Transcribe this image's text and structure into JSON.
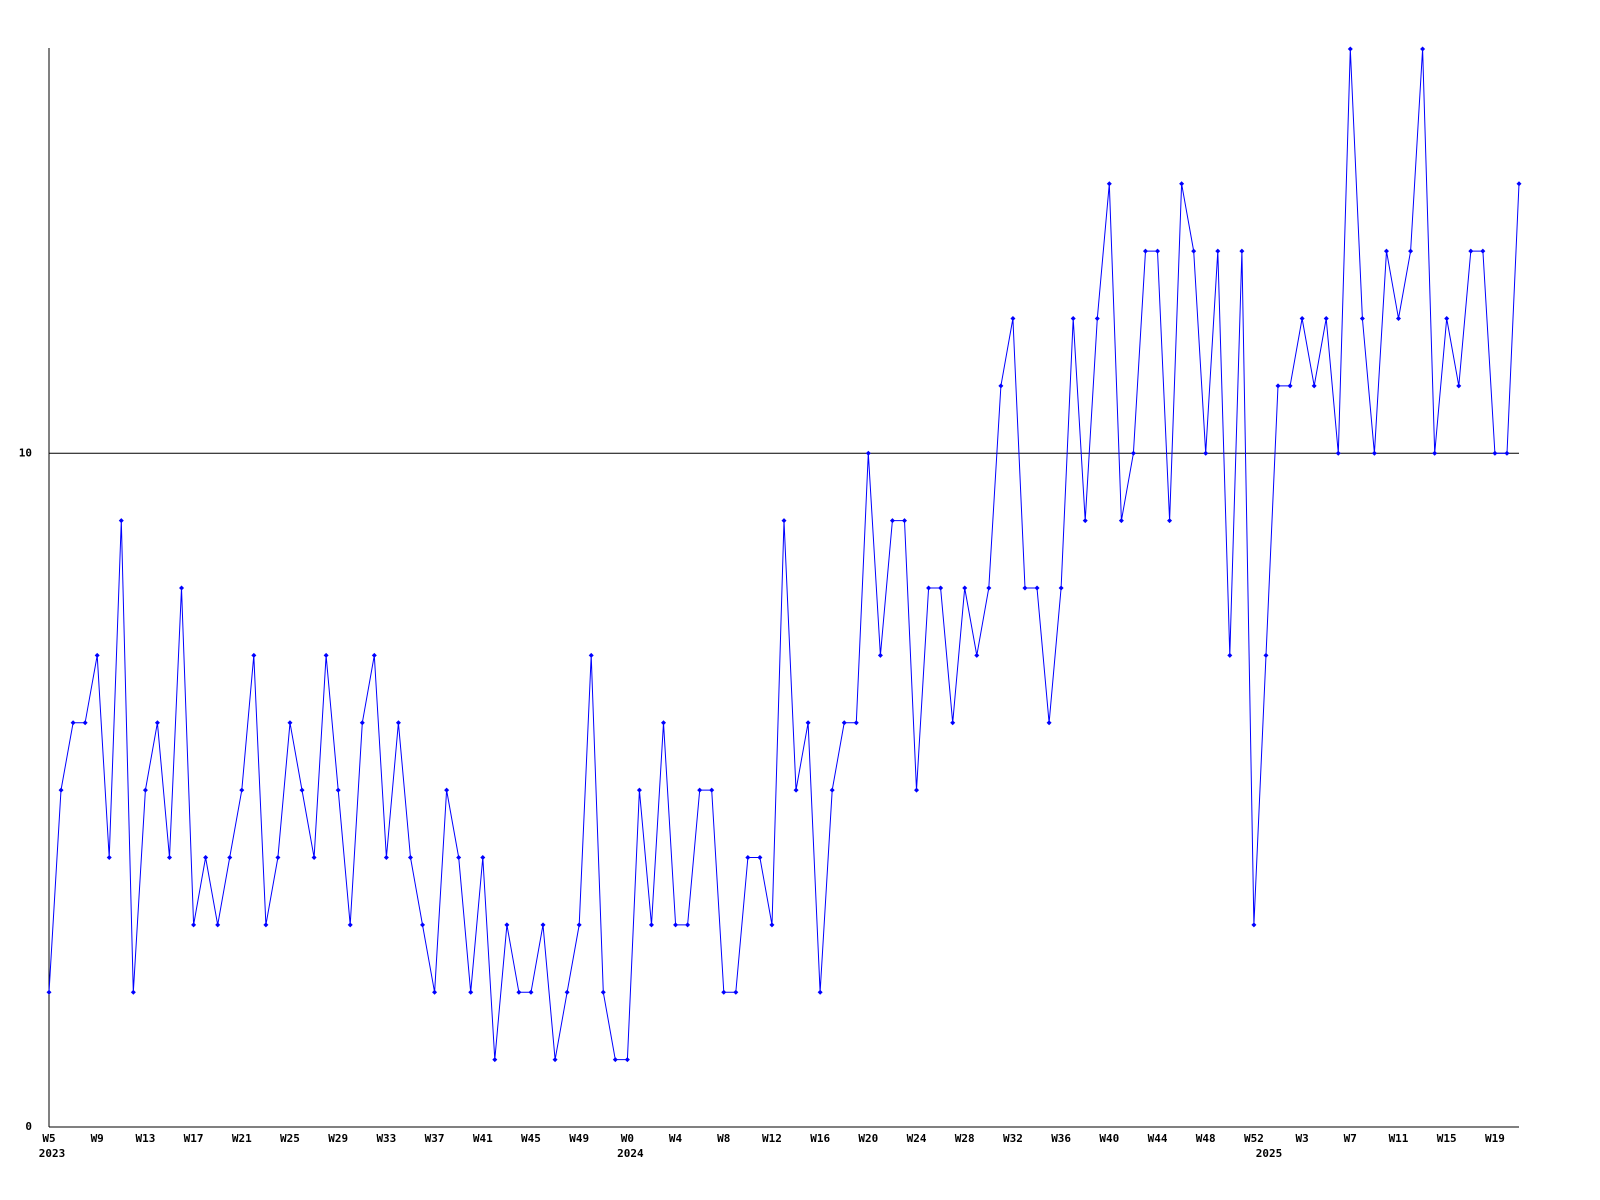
{
  "chart_data": {
    "type": "line",
    "categories": [
      "W5",
      null,
      null,
      null,
      "W9",
      null,
      null,
      null,
      "W13",
      null,
      null,
      null,
      "W17",
      null,
      null,
      null,
      "W21",
      null,
      null,
      null,
      "W25",
      null,
      null,
      null,
      "W29",
      null,
      null,
      null,
      "W33",
      null,
      null,
      null,
      "W37",
      null,
      null,
      null,
      "W41",
      null,
      null,
      null,
      "W45",
      null,
      null,
      null,
      "W49",
      null,
      null,
      null,
      "W0",
      null,
      null,
      null,
      "W4",
      null,
      null,
      null,
      "W8",
      null,
      null,
      null,
      "W12",
      null,
      null,
      null,
      "W16",
      null,
      null,
      null,
      "W20",
      null,
      null,
      null,
      "W24",
      null,
      null,
      null,
      "W28",
      null,
      null,
      null,
      "W32",
      null,
      null,
      null,
      "W36",
      null,
      null,
      null,
      "W40",
      null,
      null,
      null,
      "W44",
      null,
      null,
      null,
      "W48",
      null,
      null,
      null,
      "W52",
      null,
      null,
      null,
      "W3",
      null,
      null,
      null,
      "W7",
      null,
      null,
      null,
      "W11",
      null,
      null,
      null,
      "W15",
      null,
      null,
      null,
      "W19",
      null,
      null
    ],
    "year_labels": [
      "2023",
      null,
      null,
      null,
      null,
      null,
      null,
      null,
      null,
      null,
      null,
      null,
      null,
      null,
      null,
      null,
      null,
      null,
      null,
      null,
      null,
      null,
      null,
      null,
      null,
      null,
      null,
      null,
      null,
      null,
      null,
      null,
      null,
      null,
      null,
      null,
      null,
      null,
      null,
      null,
      null,
      null,
      null,
      null,
      null,
      null,
      null,
      null,
      "2024",
      null,
      null,
      null,
      null,
      null,
      null,
      null,
      null,
      null,
      null,
      null,
      null,
      null,
      null,
      null,
      null,
      null,
      null,
      null,
      null,
      null,
      null,
      null,
      null,
      null,
      null,
      null,
      null,
      null,
      null,
      null,
      null,
      null,
      null,
      null,
      null,
      null,
      null,
      null,
      null,
      null,
      null,
      null,
      null,
      null,
      null,
      null,
      null,
      null,
      null,
      null,
      null,
      "2025",
      null,
      null,
      null,
      null,
      null,
      null,
      null,
      null,
      null,
      null,
      null,
      null,
      null,
      null,
      null,
      null,
      null,
      null,
      null,
      null,
      null
    ],
    "series": [
      {
        "color": "#0000ff",
        "values": [
          2,
          5,
          6,
          6,
          7,
          4,
          9,
          2,
          5,
          6,
          4,
          8,
          3,
          4,
          3,
          4,
          5,
          7,
          3,
          4,
          6,
          5,
          4,
          7,
          5,
          3,
          6,
          7,
          4,
          6,
          4,
          3,
          2,
          5,
          4,
          2,
          4,
          1,
          3,
          2,
          2,
          3,
          1,
          2,
          3,
          7,
          2,
          1,
          1,
          5,
          3,
          6,
          3,
          3,
          5,
          5,
          2,
          2,
          4,
          4,
          3,
          9,
          5,
          6,
          2,
          5,
          6,
          6,
          10,
          7,
          9,
          9,
          5,
          8,
          8,
          6,
          8,
          7,
          8,
          11,
          12,
          8,
          8,
          6,
          8,
          12,
          9,
          12,
          14,
          9,
          10,
          13,
          13,
          9,
          14,
          13,
          10,
          13,
          7,
          13,
          3,
          7,
          11,
          11,
          12,
          11,
          12,
          10,
          16,
          12,
          10,
          13,
          12,
          13,
          16,
          10,
          12,
          11,
          13,
          13,
          10,
          10,
          14
        ]
      }
    ],
    "ylim": [
      0,
      16
    ],
    "yticks": [
      0,
      10
    ],
    "grid": true
  }
}
